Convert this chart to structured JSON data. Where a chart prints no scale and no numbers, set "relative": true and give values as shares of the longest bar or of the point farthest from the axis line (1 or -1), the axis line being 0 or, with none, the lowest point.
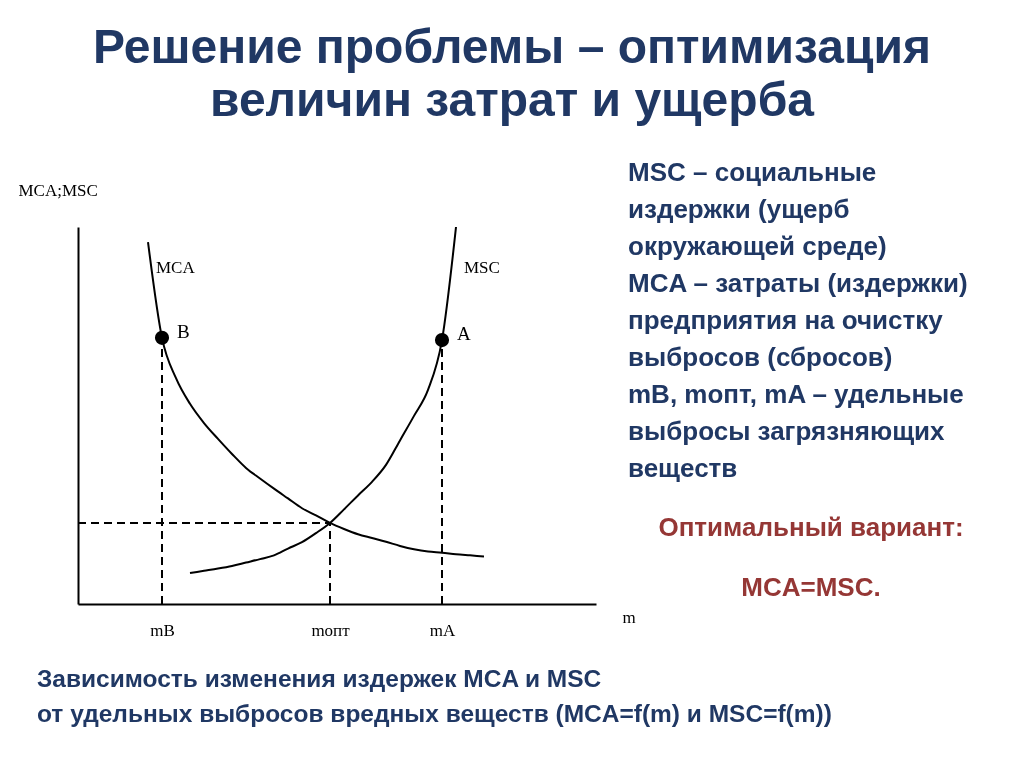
{
  "chart_data": {
    "type": "line",
    "relative": true,
    "title": "Решение проблемы – оптимизация\nвеличин затрат и ущерба",
    "xlabel": "m",
    "ylabel": "MCA;MSC",
    "categories": [
      null,
      null,
      null,
      null,
      null,
      null,
      "mB",
      null,
      null,
      null,
      null,
      null,
      null,
      null,
      null,
      null,
      null,
      null,
      "mопт",
      null,
      null,
      null,
      null,
      null,
      null,
      null,
      "mA",
      null,
      null,
      null,
      null,
      null,
      null,
      null,
      null,
      null,
      null,
      null
    ],
    "series": [
      {
        "name": "MCA",
        "color": "#000000",
        "line_style": "solid",
        "values": [
          null,
          null,
          null,
          null,
          null,
          0.96,
          0.706,
          0.599,
          0.531,
          0.48,
          0.438,
          0.398,
          0.361,
          0.333,
          0.306,
          0.28,
          0.254,
          0.235,
          0.215,
          0.199,
          0.185,
          0.175,
          0.165,
          0.154,
          0.145,
          0.139,
          0.136,
          0.132,
          0.129,
          0.126,
          null,
          null,
          null,
          null,
          null,
          null,
          null,
          null
        ]
      },
      {
        "name": "MSC",
        "color": "#000000",
        "line_style": "solid",
        "values": [
          null,
          null,
          null,
          null,
          null,
          null,
          null,
          null,
          0.082,
          0.088,
          0.094,
          0.101,
          0.11,
          0.119,
          0.129,
          0.147,
          0.164,
          0.188,
          0.215,
          0.251,
          0.288,
          0.324,
          0.369,
          0.434,
          0.499,
          0.568,
          0.7,
          1.0,
          null,
          null,
          null,
          null,
          null,
          null,
          null,
          null,
          null,
          null
        ]
      },
      {
        "type": "scatter",
        "color": "#000000",
        "marker": "circle",
        "x": [
          "mB",
          "mA"
        ],
        "values": [
          0.706,
          0.7
        ]
      },
      {
        "type": "line",
        "color": "#000000",
        "line_style": "dashed",
        "x": [
          "mB",
          "mB"
        ],
        "values": [
          0,
          0.706
        ]
      },
      {
        "type": "line",
        "color": "#000000",
        "line_style": "dashed",
        "x": [
          "mопт",
          "mопт"
        ],
        "values": [
          0,
          0.215
        ]
      },
      {
        "type": "line",
        "color": "#000000",
        "line_style": "dashed",
        "x": [
          "mA",
          "mA"
        ],
        "values": [
          0,
          0.7
        ]
      },
      {
        "type": "line",
        "color": "#000000",
        "line_style": "dashed",
        "values": [
          0.215,
          0.215,
          0.215,
          0.215,
          0.215,
          0.215,
          0.215,
          0.215,
          0.215,
          0.215,
          0.215,
          0.215,
          0.215,
          0.215,
          0.215,
          0.215,
          0.215,
          0.215,
          0.215,
          null,
          null,
          null,
          null,
          null,
          null,
          null,
          null,
          null,
          null,
          null,
          null,
          null,
          null,
          null,
          null,
          null,
          null,
          null
        ]
      }
    ],
    "annotations": [
      "MSC – социальные\nиздержки (ущерб\nокружающей среде)\nMCA – затраты (издержки)\nпредприятия на очистку\nвыбросов (сбросов)\nmB, mопт, mA – удельные\nвыбросы загрязняющих\nвеществ",
      "Оптимальный вариант:",
      "MCA=MSC.",
      "Зависимость изменения издержек MCA и MSC\nот удельных выбросов вредных веществ (MCA=f(m) и MSC=f(m))",
      {
        "text": "B",
        "x": "mB",
        "y": 0.706
      },
      {
        "text": "A",
        "x": "mA",
        "y": 0.7
      }
    ]
  }
}
